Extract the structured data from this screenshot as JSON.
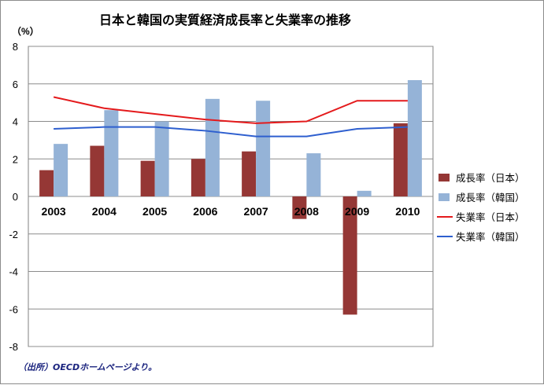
{
  "chart_data": {
    "type": "bar",
    "title": "日本と韓国の実質経済成長率と失業率の推移",
    "unit_label": "（%）",
    "categories": [
      "2003",
      "2004",
      "2005",
      "2006",
      "2007",
      "2008",
      "2009",
      "2010"
    ],
    "ylim": [
      -8,
      8
    ],
    "yticks": [
      "8",
      "6",
      "4",
      "2",
      "0",
      "-2",
      "-4",
      "-6",
      "-8"
    ],
    "ytick_values": [
      8,
      6,
      4,
      2,
      0,
      -2,
      -4,
      -6,
      -8
    ],
    "grid": true,
    "legend_position": "right",
    "series": [
      {
        "name": "成長率（日本）",
        "kind": "bar",
        "color": "#953735",
        "values": [
          1.4,
          2.7,
          1.9,
          2.0,
          2.4,
          -1.2,
          -6.3,
          3.9
        ]
      },
      {
        "name": "成長率（韓国）",
        "kind": "bar",
        "color": "#95b3d7",
        "values": [
          2.8,
          4.6,
          4.0,
          5.2,
          5.1,
          2.3,
          0.3,
          6.2
        ]
      },
      {
        "name": "失業率（日本）",
        "kind": "line",
        "color": "#e41a1c",
        "values": [
          5.3,
          4.7,
          4.4,
          4.1,
          3.9,
          4.0,
          5.1,
          5.1
        ]
      },
      {
        "name": "失業率（韓国）",
        "kind": "line",
        "color": "#2e5fcf",
        "values": [
          3.6,
          3.7,
          3.7,
          3.5,
          3.2,
          3.2,
          3.6,
          3.7
        ]
      }
    ],
    "source": "（出所）OECDホームページより。"
  }
}
